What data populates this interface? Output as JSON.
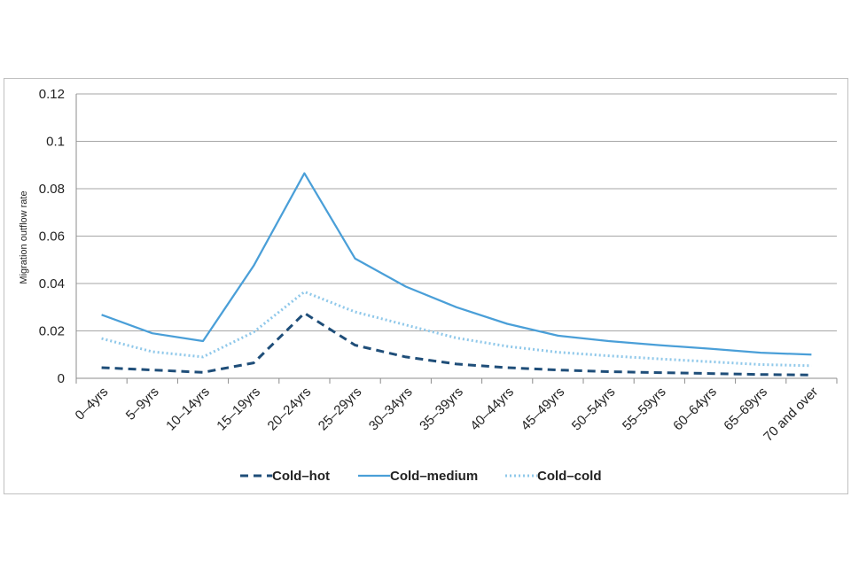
{
  "chart_data": {
    "type": "line",
    "title": "",
    "xlabel": "",
    "ylabel": "Migration outflow rate",
    "ylim": [
      0,
      0.12
    ],
    "yticks": [
      "0",
      "0.02",
      "0.04",
      "0.06",
      "0.08",
      "0.1",
      "0.12"
    ],
    "grid": true,
    "legend_position": "bottom",
    "categories": [
      "0–4yrs",
      "5–9yrs",
      "10–14yrs",
      "15–19yrs",
      "20–24yrs",
      "25–29yrs",
      "30–34yrs",
      "35–39yrs",
      "40–44yrs",
      "45–49yrs",
      "50–54yrs",
      "55–59yrs",
      "60–64yrs",
      "65–69yrs",
      "70 and over"
    ],
    "series": [
      {
        "name": "Cold–hot",
        "style": "dashed",
        "color": "#1f4e79",
        "values": [
          0.0045,
          0.0035,
          0.0025,
          0.0065,
          0.0275,
          0.014,
          0.009,
          0.006,
          0.0045,
          0.0035,
          0.0028,
          0.0024,
          0.002,
          0.0016,
          0.0014
        ]
      },
      {
        "name": "Cold–medium",
        "style": "solid",
        "color": "#4a9fd8",
        "values": [
          0.0268,
          0.019,
          0.0157,
          0.0475,
          0.0865,
          0.0505,
          0.0387,
          0.03,
          0.023,
          0.018,
          0.0157,
          0.014,
          0.0125,
          0.0108,
          0.01
        ]
      },
      {
        "name": "Cold–cold",
        "style": "dotted",
        "color": "#8fc8ea",
        "values": [
          0.0168,
          0.0112,
          0.009,
          0.0195,
          0.0365,
          0.028,
          0.0225,
          0.017,
          0.0135,
          0.011,
          0.0095,
          0.0082,
          0.007,
          0.0058,
          0.0053
        ]
      }
    ]
  }
}
